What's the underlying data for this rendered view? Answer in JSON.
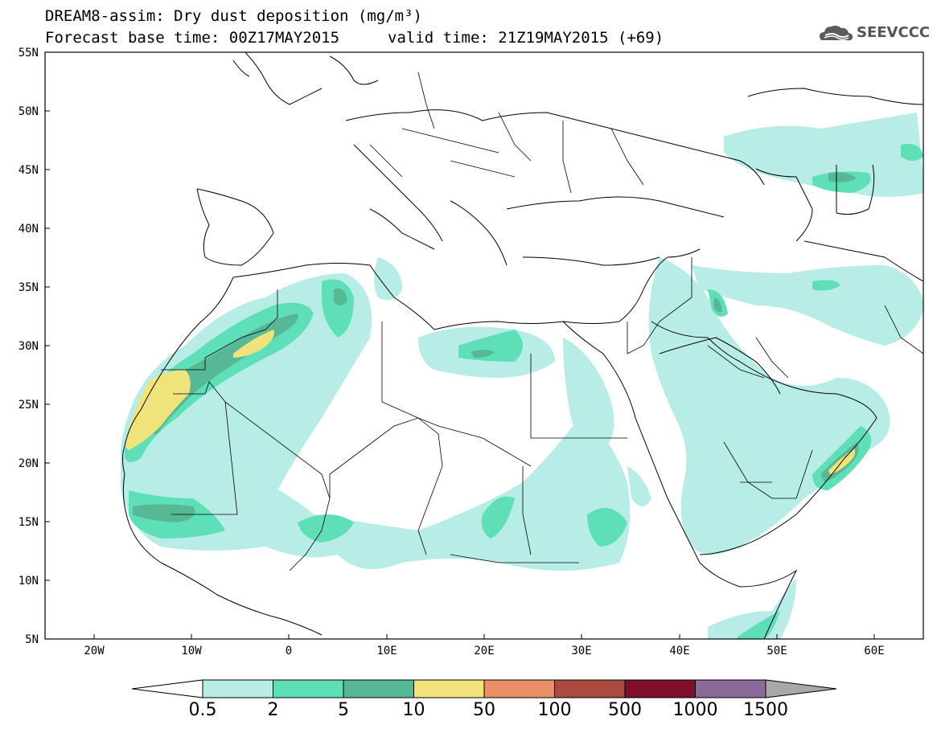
{
  "header": {
    "title": "DREAM8-assim: Dry dust deposition (mg/m³)",
    "base_time": "Forecast base time: 00Z17MAY2015",
    "valid_time": "valid time: 21Z19MAY2015 (+69)"
  },
  "logo": {
    "text": "SEEVCCC",
    "icon": "cloud-icon"
  },
  "map": {
    "lon_range": [
      -25,
      65
    ],
    "lat_range": [
      5,
      55
    ],
    "lat_ticks": [
      "5N",
      "10N",
      "15N",
      "20N",
      "25N",
      "30N",
      "35N",
      "40N",
      "45N",
      "50N",
      "55N"
    ],
    "lon_ticks": [
      "20W",
      "10W",
      "0",
      "10E",
      "20E",
      "30E",
      "40E",
      "50E",
      "60E"
    ]
  },
  "colorbar": {
    "labels": [
      "0.5",
      "2",
      "5",
      "10",
      "50",
      "100",
      "500",
      "1000",
      "1500"
    ],
    "colors": [
      "#b8ece6",
      "#5fdfb8",
      "#56b895",
      "#f1e37c",
      "#ea9067",
      "#a94b3e",
      "#7e0f2c",
      "#8b6a9a"
    ],
    "under_color": "#ffffff",
    "over_color": "#a8a8a8"
  }
}
